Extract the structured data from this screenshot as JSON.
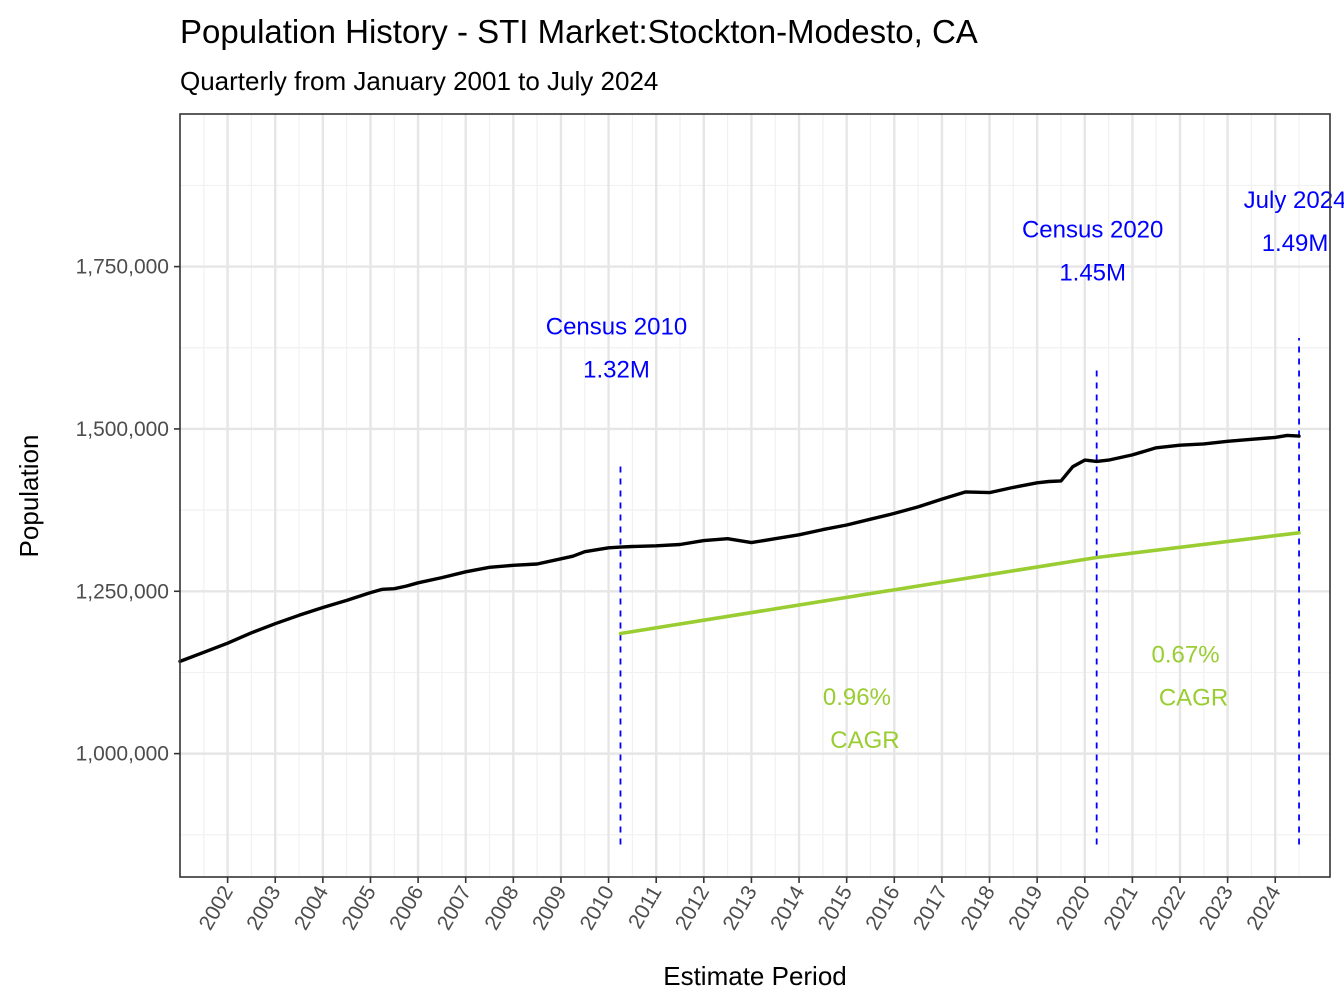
{
  "chart_data": {
    "type": "line",
    "title": "Population History - STI Market:Stockton-Modesto, CA",
    "subtitle": "Quarterly from January 2001 to July 2024",
    "xlabel": "Estimate Period",
    "ylabel": "Population",
    "xlim": [
      2001.0,
      2025.15
    ],
    "ylim": [
      810000,
      1985000
    ],
    "y_ticks": [
      1000000,
      1250000,
      1500000,
      1750000
    ],
    "y_tick_labels": [
      "1,000,000",
      "1,250,000",
      "1,500,000",
      "1,750,000"
    ],
    "x_ticks": [
      2002,
      2003,
      2004,
      2005,
      2006,
      2007,
      2008,
      2009,
      2010,
      2011,
      2012,
      2013,
      2014,
      2015,
      2016,
      2017,
      2018,
      2019,
      2020,
      2021,
      2022,
      2023,
      2024
    ],
    "x_tick_labels": [
      "2002",
      "2003",
      "2004",
      "2005",
      "2006",
      "2007",
      "2008",
      "2009",
      "2010",
      "2011",
      "2012",
      "2013",
      "2014",
      "2015",
      "2016",
      "2017",
      "2018",
      "2019",
      "2020",
      "2021",
      "2022",
      "2023",
      "2024"
    ],
    "grid": true,
    "series": [
      {
        "name": "Population",
        "color": "#000000",
        "x": [
          2001.0,
          2001.5,
          2002.0,
          2002.5,
          2003.0,
          2003.5,
          2004.0,
          2004.5,
          2005.0,
          2005.25,
          2005.5,
          2005.75,
          2006.0,
          2006.5,
          2007.0,
          2007.5,
          2008.0,
          2008.5,
          2009.0,
          2009.25,
          2009.5,
          2010.0,
          2010.25,
          2010.5,
          2011.0,
          2011.5,
          2012.0,
          2012.5,
          2013.0,
          2013.5,
          2014.0,
          2014.5,
          2015.0,
          2015.5,
          2016.0,
          2016.5,
          2017.0,
          2017.5,
          2018.0,
          2018.5,
          2019.0,
          2019.25,
          2019.5,
          2019.75,
          2020.0,
          2020.25,
          2020.5,
          2021.0,
          2021.5,
          2022.0,
          2022.5,
          2023.0,
          2023.5,
          2024.0,
          2024.25,
          2024.5
        ],
        "values": [
          1142000,
          1156000,
          1170000,
          1186000,
          1200000,
          1213000,
          1225000,
          1236000,
          1248000,
          1253000,
          1254000,
          1258000,
          1263000,
          1271000,
          1280000,
          1287000,
          1290000,
          1292000,
          1300000,
          1304000,
          1311000,
          1317000,
          1318000,
          1319000,
          1320000,
          1322000,
          1328000,
          1331000,
          1325000,
          1331000,
          1337000,
          1345000,
          1352000,
          1361000,
          1370000,
          1380000,
          1392000,
          1403000,
          1402000,
          1410000,
          1417000,
          1419000,
          1420000,
          1442000,
          1452000,
          1450000,
          1452000,
          1460000,
          1471000,
          1475000,
          1477000,
          1481000,
          1484000,
          1487000,
          1490000,
          1489000
        ]
      },
      {
        "name": "CAGR trend",
        "color": "#9acd32",
        "x": [
          2010.25,
          2020.25,
          2024.5
        ],
        "values": [
          1185000,
          1302000,
          1340000
        ]
      }
    ],
    "markers": [
      {
        "x": 2010.25,
        "label": "Census 2010",
        "value_label": "1.32M",
        "y_from": 860000,
        "y_to": 1445000
      },
      {
        "x": 2020.25,
        "label": "Census 2020",
        "value_label": "1.45M",
        "y_from": 860000,
        "y_to": 1595000
      },
      {
        "x": 2024.5,
        "label": "July 2024",
        "value_label": "1.49M",
        "y_from": 860000,
        "y_to": 1640000
      }
    ],
    "annotations": [
      {
        "text": "0.96%",
        "text2": "CAGR",
        "x": 2015.3,
        "y": 1075000,
        "color": "#9acd32"
      },
      {
        "text": "0.67%",
        "text2": "CAGR",
        "x": 2022.2,
        "y": 1140000,
        "color": "#9acd32"
      }
    ],
    "marker_color": "#0000ff"
  }
}
